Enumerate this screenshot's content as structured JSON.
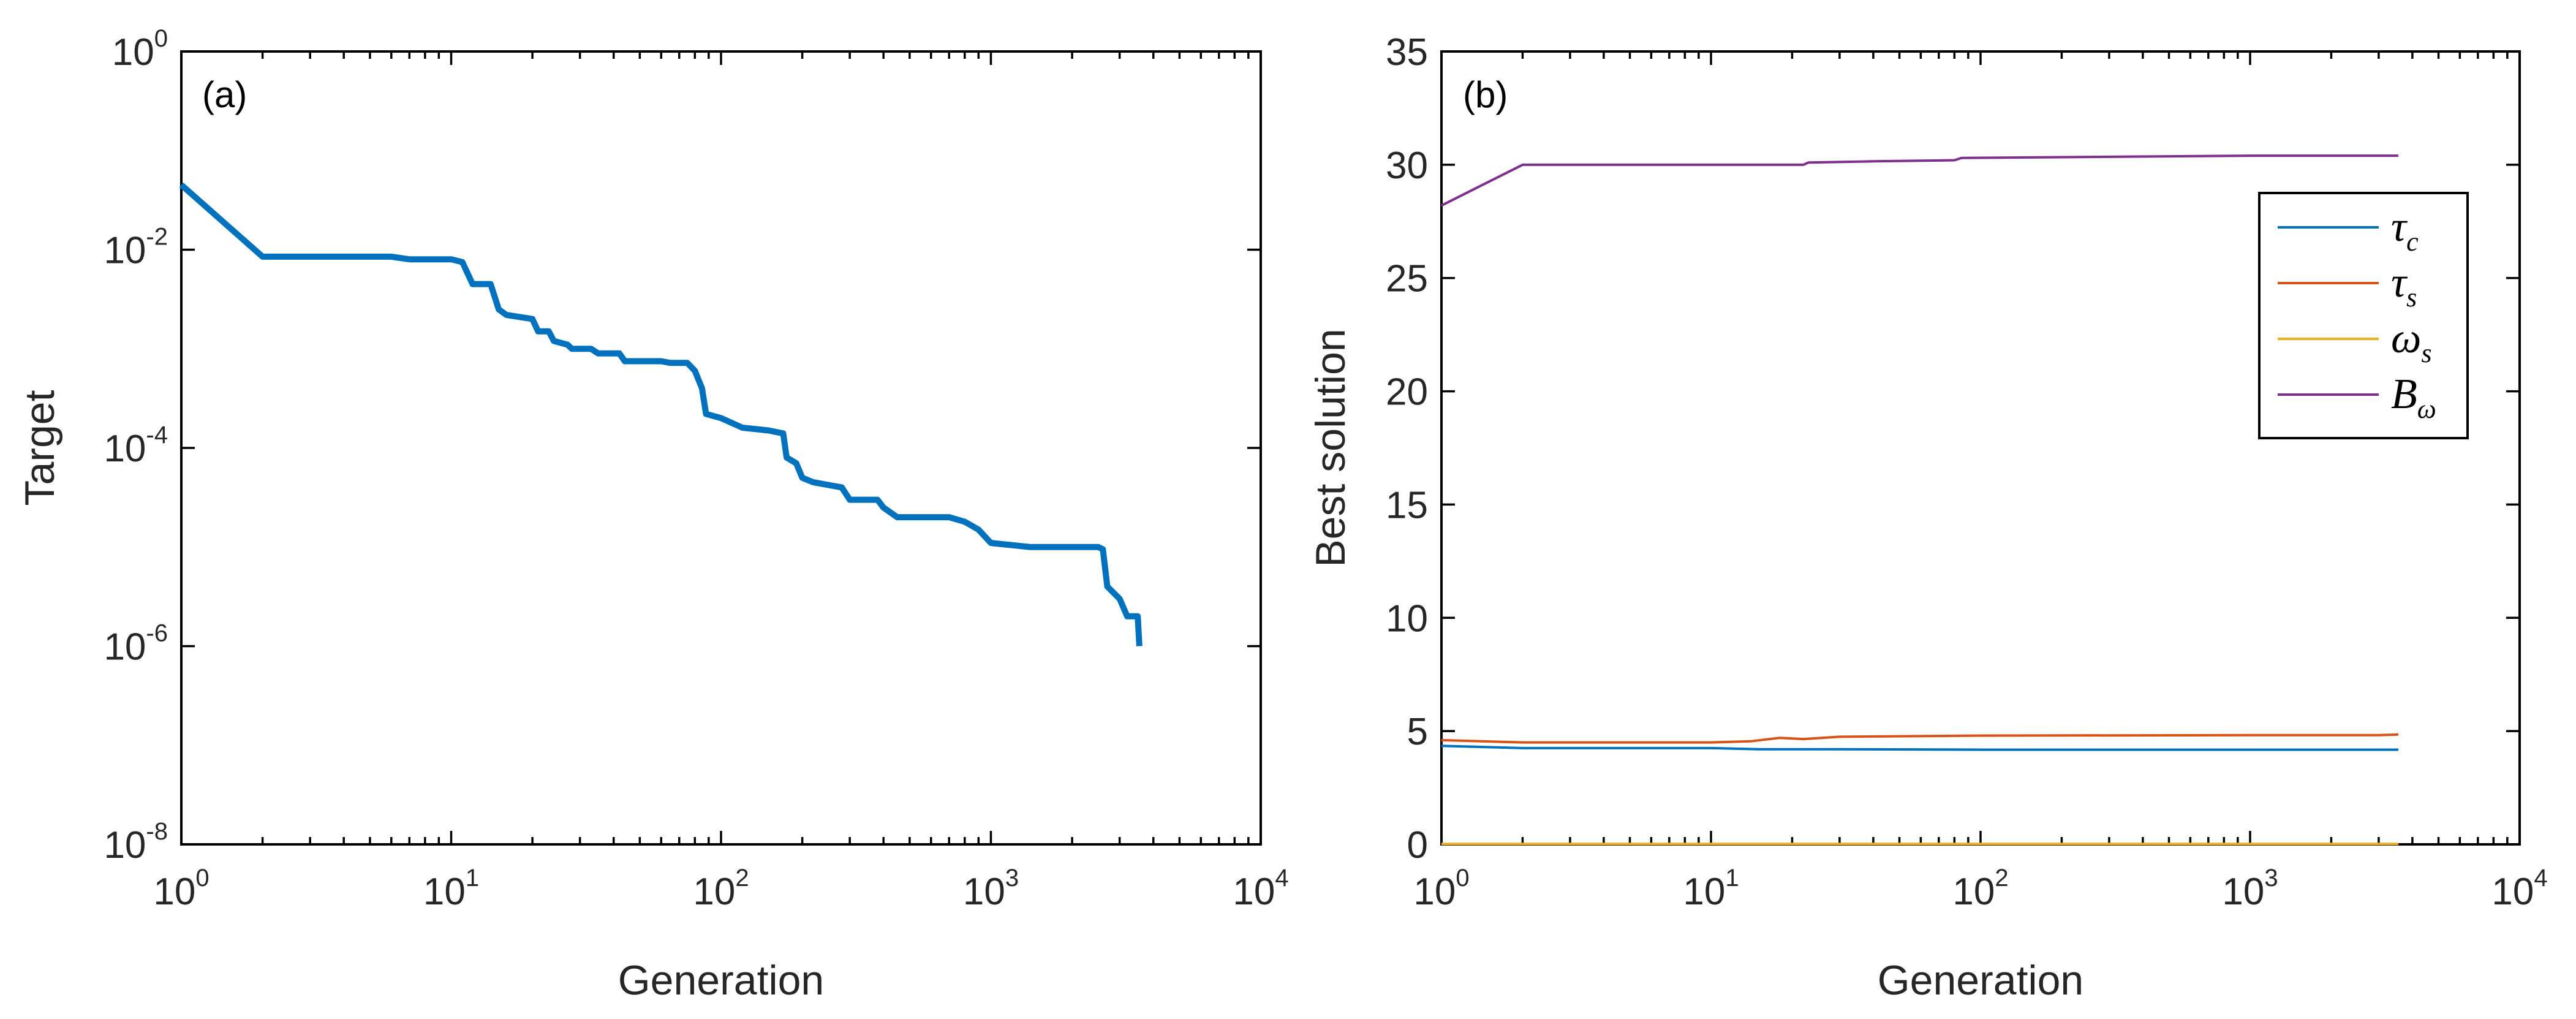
{
  "chart_data": [
    {
      "type": "line",
      "panel_label": "(a)",
      "xlabel": "Generation",
      "ylabel": "Target",
      "xscale": "log",
      "yscale": "log",
      "xlim": [
        1,
        10000
      ],
      "ylim": [
        1e-08,
        1
      ],
      "xticks": [
        {
          "base": "10",
          "exp": "0"
        },
        {
          "base": "10",
          "exp": "1"
        },
        {
          "base": "10",
          "exp": "2"
        },
        {
          "base": "10",
          "exp": "3"
        },
        {
          "base": "10",
          "exp": "4"
        }
      ],
      "yticks": [
        {
          "base": "10",
          "exp": "0"
        },
        {
          "base": "10",
          "exp": "-2"
        },
        {
          "base": "10",
          "exp": "-4"
        },
        {
          "base": "10",
          "exp": "-6"
        },
        {
          "base": "10",
          "exp": "-8"
        }
      ],
      "series": [
        {
          "name": "Target",
          "color": "#0072BD",
          "points": [
            [
              1,
              0.045
            ],
            [
              2,
              0.0085
            ],
            [
              6,
              0.0085
            ],
            [
              7,
              0.008
            ],
            [
              10,
              0.008
            ],
            [
              11,
              0.0075
            ],
            [
              12,
              0.0045
            ],
            [
              14,
              0.0045
            ],
            [
              15,
              0.0025
            ],
            [
              16,
              0.0022
            ],
            [
              20,
              0.002
            ],
            [
              21,
              0.0015
            ],
            [
              23,
              0.0015
            ],
            [
              24,
              0.0012
            ],
            [
              27,
              0.0011
            ],
            [
              28,
              0.001
            ],
            [
              33,
              0.001
            ],
            [
              35,
              0.0009
            ],
            [
              42,
              0.0009
            ],
            [
              44,
              0.00075
            ],
            [
              60,
              0.00075
            ],
            [
              65,
              0.00072
            ],
            [
              75,
              0.00072
            ],
            [
              80,
              0.0006
            ],
            [
              85,
              0.0004
            ],
            [
              88,
              0.00022
            ],
            [
              100,
              0.0002
            ],
            [
              120,
              0.00016
            ],
            [
              150,
              0.00015
            ],
            [
              170,
              0.00014
            ],
            [
              175,
              8e-05
            ],
            [
              190,
              7e-05
            ],
            [
              200,
              5e-05
            ],
            [
              220,
              4.5e-05
            ],
            [
              280,
              4e-05
            ],
            [
              300,
              3e-05
            ],
            [
              380,
              3e-05
            ],
            [
              400,
              2.5e-05
            ],
            [
              450,
              2e-05
            ],
            [
              700,
              2e-05
            ],
            [
              800,
              1.8e-05
            ],
            [
              900,
              1.5e-05
            ],
            [
              1000,
              1.1e-05
            ],
            [
              1400,
              1e-05
            ],
            [
              2500,
              1e-05
            ],
            [
              2600,
              9.5e-06
            ],
            [
              2700,
              4e-06
            ],
            [
              3000,
              3e-06
            ],
            [
              3200,
              2e-06
            ],
            [
              3500,
              2e-06
            ],
            [
              3550,
              1e-06
            ]
          ]
        }
      ]
    },
    {
      "type": "line",
      "panel_label": "(b)",
      "xlabel": "Generation",
      "ylabel": "Best solution",
      "xscale": "log",
      "yscale": "linear",
      "xlim": [
        1,
        10000
      ],
      "ylim": [
        0,
        35
      ],
      "xticks": [
        {
          "base": "10",
          "exp": "0"
        },
        {
          "base": "10",
          "exp": "1"
        },
        {
          "base": "10",
          "exp": "2"
        },
        {
          "base": "10",
          "exp": "3"
        },
        {
          "base": "10",
          "exp": "4"
        }
      ],
      "yticks": [
        "0",
        "5",
        "10",
        "15",
        "20",
        "25",
        "30",
        "35"
      ],
      "legend_position": "top-right",
      "series": [
        {
          "name": "τc",
          "symbol": "τ",
          "subscript": "c",
          "color": "#0072BD",
          "points": [
            [
              1,
              4.35
            ],
            [
              2,
              4.25
            ],
            [
              10,
              4.25
            ],
            [
              15,
              4.2
            ],
            [
              30,
              4.2
            ],
            [
              100,
              4.18
            ],
            [
              1000,
              4.18
            ],
            [
              3550,
              4.18
            ]
          ]
        },
        {
          "name": "τs",
          "symbol": "τ",
          "subscript": "s",
          "color": "#D95319",
          "points": [
            [
              1,
              4.6
            ],
            [
              2,
              4.5
            ],
            [
              10,
              4.5
            ],
            [
              14,
              4.55
            ],
            [
              18,
              4.7
            ],
            [
              22,
              4.65
            ],
            [
              30,
              4.75
            ],
            [
              100,
              4.8
            ],
            [
              1000,
              4.82
            ],
            [
              3000,
              4.82
            ],
            [
              3550,
              4.85
            ]
          ]
        },
        {
          "name": "ωs",
          "symbol": "ω",
          "subscript": "s",
          "color": "#EDB120",
          "points": [
            [
              1,
              0.02
            ],
            [
              3550,
              0.02
            ]
          ]
        },
        {
          "name": "Bω",
          "symbol": "B",
          "subscript": "ω",
          "color": "#7E2F8E",
          "points": [
            [
              1,
              28.2
            ],
            [
              2,
              30.0
            ],
            [
              22,
              30.0
            ],
            [
              23,
              30.1
            ],
            [
              40,
              30.15
            ],
            [
              80,
              30.2
            ],
            [
              85,
              30.3
            ],
            [
              300,
              30.35
            ],
            [
              1000,
              30.4
            ],
            [
              3550,
              30.4
            ]
          ]
        }
      ]
    }
  ]
}
